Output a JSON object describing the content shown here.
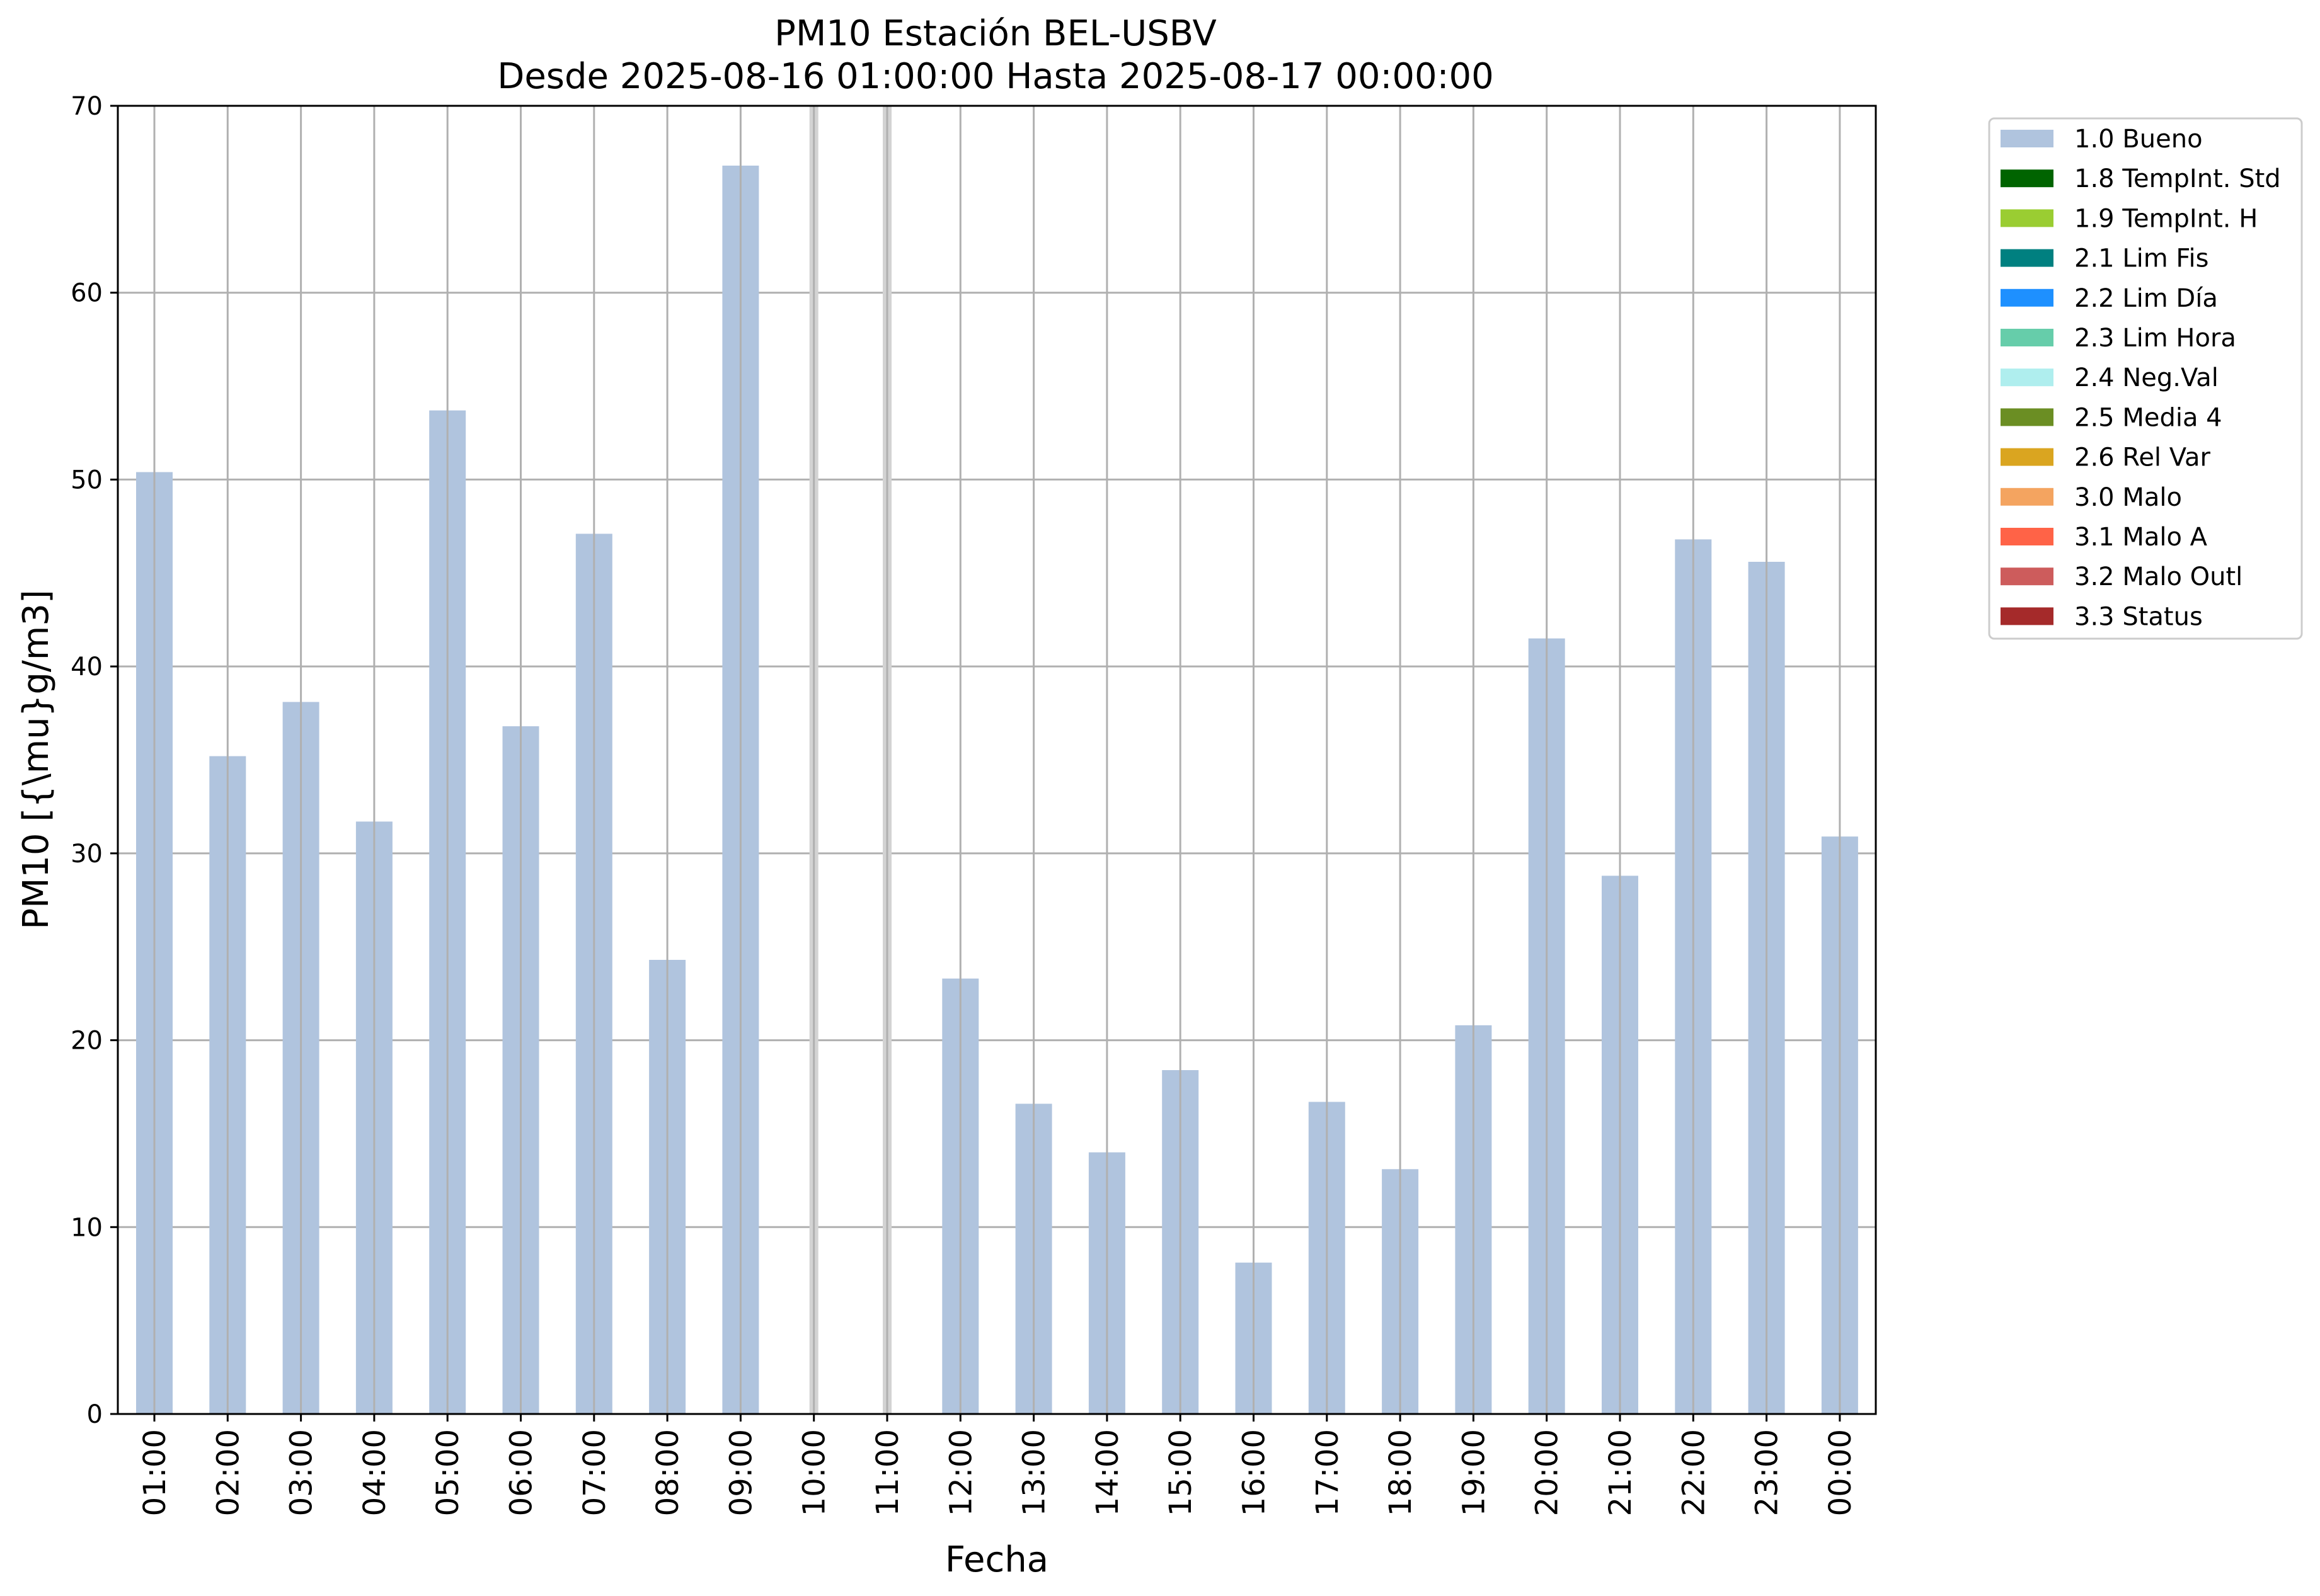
{
  "chart_data": {
    "type": "bar",
    "title": [
      "PM10 Estación BEL-USBV",
      "Desde 2025-08-16 01:00:00 Hasta 2025-08-17 00:00:00"
    ],
    "xlabel": "Fecha",
    "ylabel": "PM10 [{\\mu}g/m3]",
    "ylim": [
      0,
      70
    ],
    "yticks": [
      0,
      10,
      20,
      30,
      40,
      50,
      60,
      70
    ],
    "grid": true,
    "legend_position": "outside top-right",
    "categories": [
      "01:00",
      "02:00",
      "03:00",
      "04:00",
      "05:00",
      "06:00",
      "07:00",
      "08:00",
      "09:00",
      "10:00",
      "11:00",
      "12:00",
      "13:00",
      "14:00",
      "15:00",
      "16:00",
      "17:00",
      "18:00",
      "19:00",
      "20:00",
      "21:00",
      "22:00",
      "23:00",
      "00:00"
    ],
    "series": [
      {
        "name": "1.0 Bueno",
        "color": "#b0c4de",
        "values": [
          50.4,
          35.2,
          38.1,
          31.7,
          53.7,
          36.8,
          47.1,
          24.3,
          66.8,
          null,
          null,
          23.3,
          16.6,
          14.0,
          18.4,
          8.1,
          16.7,
          13.1,
          20.8,
          41.5,
          28.8,
          46.8,
          45.6,
          30.9
        ]
      }
    ],
    "missing_markers": [
      "10:00",
      "11:00"
    ],
    "legend": [
      {
        "label": "1.0 Bueno",
        "color": "#b0c4de"
      },
      {
        "label": "1.8 TempInt. Std",
        "color": "#006400"
      },
      {
        "label": "1.9 TempInt. H",
        "color": "#9acd32"
      },
      {
        "label": "2.1 Lim Fis",
        "color": "#008080"
      },
      {
        "label": "2.2 Lim Día",
        "color": "#1e90ff"
      },
      {
        "label": "2.3 Lim Hora",
        "color": "#66cdaa"
      },
      {
        "label": "2.4 Neg.Val",
        "color": "#afeeee"
      },
      {
        "label": "2.5 Media 4",
        "color": "#6b8e23"
      },
      {
        "label": "2.6 Rel Var",
        "color": "#daa520"
      },
      {
        "label": "3.0 Malo",
        "color": "#f4a460"
      },
      {
        "label": "3.1 Malo A",
        "color": "#ff6347"
      },
      {
        "label": "3.2 Malo Outl",
        "color": "#cd5c5c"
      },
      {
        "label": "3.3 Status",
        "color": "#a52a2a"
      }
    ]
  }
}
